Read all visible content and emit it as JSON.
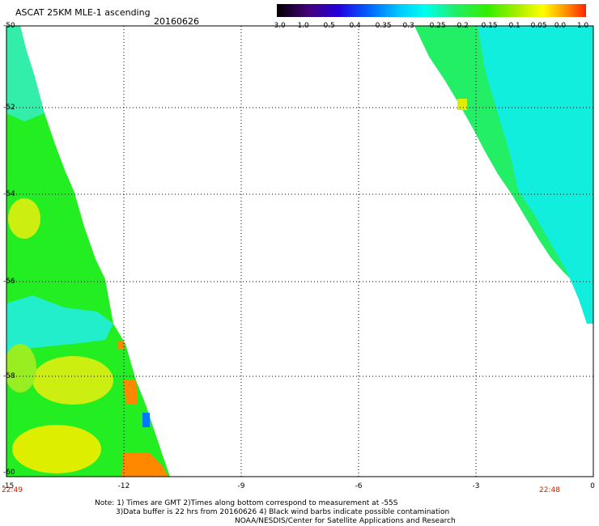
{
  "header": {
    "title": "ASCAT 25KM MLE-1 ascending",
    "date": "20160626"
  },
  "colorbar": {
    "labels": [
      "-3.0",
      "-1.0",
      "-0.5",
      "-0.4",
      "-0.35",
      "-0.3",
      "-0.25",
      "-0.2",
      "-0.15",
      "-0.1",
      "-0.05",
      "0.0",
      "1.0"
    ]
  },
  "axes": {
    "y_ticks": [
      "-50",
      "-52",
      "-54",
      "-56",
      "-58",
      "-60"
    ],
    "x_ticks": [
      "-15",
      "-12",
      "-9",
      "-6",
      "-3",
      "0"
    ],
    "time_left": "22:49",
    "time_right": "22:48"
  },
  "notes": {
    "line1": "Note: 1) Times are GMT 2)Times along bottom correspond to measurement at -55S",
    "line2": "3)Data buffer is 22 hrs from 20160626 4) Black wind barbs indicate possible contamination",
    "line3": "NOAA/NESDIS/Center for Satellite Applications and Research"
  },
  "colors": {
    "swath_green": "#22ee22",
    "swath_cyan": "#22eecc",
    "swath_yellow": "#ddee00",
    "swath_orange": "#ff8800"
  }
}
